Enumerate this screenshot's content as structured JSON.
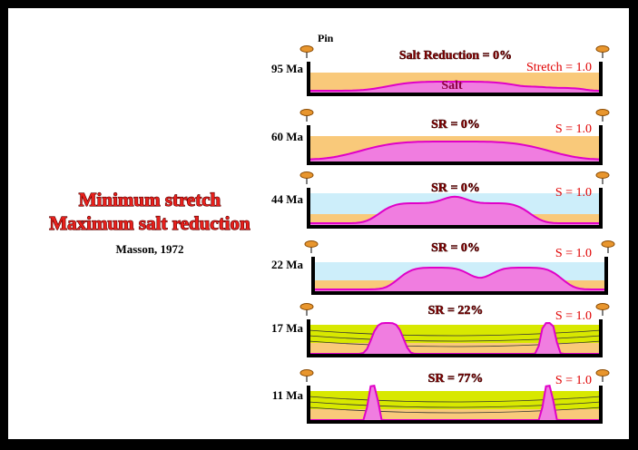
{
  "title": [
    "Minimum stretch",
    "Maximum salt reduction"
  ],
  "citation": "Masson, 1972",
  "pin_label": "Pin",
  "salt_label": "Salt",
  "panels": [
    {
      "age": "95 Ma",
      "sr": "Salt Reduction = 0%",
      "stretch": "Stretch = 1.0"
    },
    {
      "age": "60 Ma",
      "sr": "SR = 0%",
      "stretch": "S = 1.0"
    },
    {
      "age": "44 Ma",
      "sr": "SR = 0%",
      "stretch": "S = 1.0"
    },
    {
      "age": "22 Ma",
      "sr": "SR = 0%",
      "stretch": "S = 1.0"
    },
    {
      "age": "17 Ma",
      "sr": "SR = 22%",
      "stretch": "S = 1.0"
    },
    {
      "age": "11 Ma",
      "sr": "SR = 77%",
      "stretch": "S = 1.0"
    }
  ]
}
